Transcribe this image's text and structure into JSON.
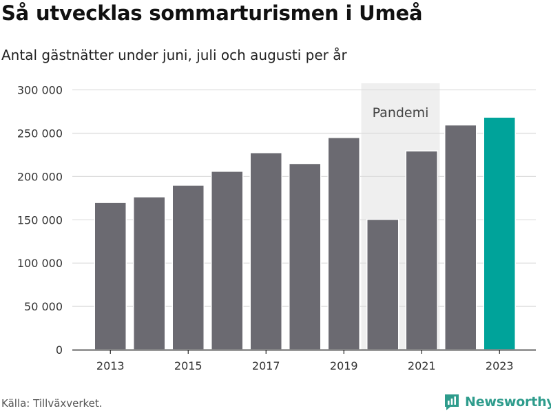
{
  "title": "Så utvecklas sommarturismen i Umeå",
  "subtitle": "Antal gästnätter under juni, juli och augusti per år",
  "source": "Källa: Tillväxverket.",
  "brand": "Newsworthy",
  "colors": {
    "bar": "#6b6a71",
    "highlight": "#00a39a",
    "shade": "#efefef",
    "grid": "#dcdcdc",
    "brand": "#2e9c8c"
  },
  "chart_data": {
    "type": "bar",
    "categories": [
      "2013",
      "2014",
      "2015",
      "2016",
      "2017",
      "2018",
      "2019",
      "2020",
      "2021",
      "2022",
      "2023"
    ],
    "values": [
      170000,
      176500,
      190000,
      206000,
      227500,
      215000,
      245000,
      150500,
      229500,
      259500,
      268500
    ],
    "highlight_category": "2023",
    "x_tick_labels": [
      "2013",
      "2015",
      "2017",
      "2019",
      "2021",
      "2023"
    ],
    "y_ticks": [
      0,
      50000,
      100000,
      150000,
      200000,
      250000,
      300000
    ],
    "y_tick_labels": [
      "0",
      "50 000",
      "100 000",
      "150 000",
      "200 000",
      "250 000",
      "300 000"
    ],
    "ylim": [
      0,
      310000
    ],
    "xlabel": "",
    "ylabel": "",
    "grid": true,
    "shaded_region": {
      "from": "2020",
      "to": "2021",
      "label": "Pandemi"
    }
  }
}
